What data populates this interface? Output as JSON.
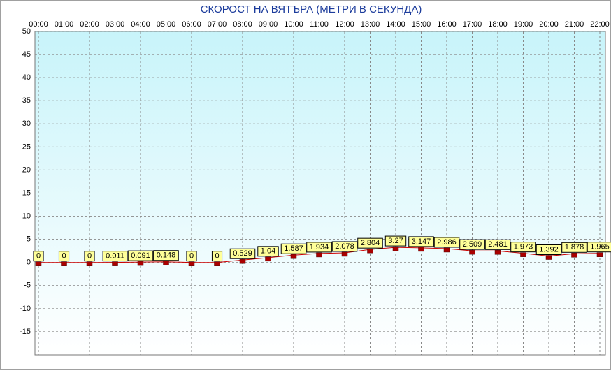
{
  "chart_data": {
    "type": "line",
    "title": "СКОРОСТ НА ВЯТЪРА (МЕТРИ В СЕКУНДА)",
    "categories": [
      "00:00",
      "01:00",
      "02:00",
      "03:00",
      "04:00",
      "05:00",
      "06:00",
      "07:00",
      "08:00",
      "09:00",
      "10:00",
      "11:00",
      "12:00",
      "13:00",
      "14:00",
      "15:00",
      "16:00",
      "17:00",
      "18:00",
      "19:00",
      "20:00",
      "21:00",
      "22:00"
    ],
    "series": [
      {
        "color": "#cc0000",
        "values": [
          0,
          0,
          0,
          0.011,
          0.091,
          0.148,
          0,
          0,
          0.529,
          1.04,
          1.587,
          1.934,
          2.078,
          2.804,
          3.27,
          3.147,
          2.986,
          2.509,
          2.481,
          1.973,
          1.392,
          1.878,
          1.965
        ]
      }
    ],
    "ylim": [
      -20,
      50
    ],
    "yticks": [
      50,
      45,
      40,
      35,
      30,
      25,
      20,
      15,
      10,
      5,
      0,
      -5,
      -10,
      -15
    ],
    "grid": true
  }
}
